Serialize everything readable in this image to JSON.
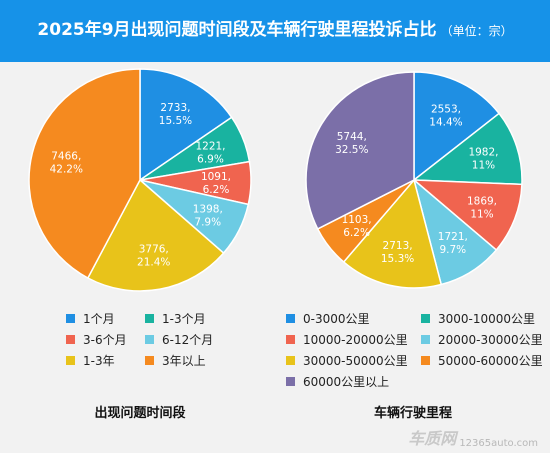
{
  "header": {
    "title": "2025年9月出现问题时间段及车辆行驶里程投诉占比",
    "unit": "（单位：宗）"
  },
  "watermark": {
    "logo": "车质网",
    "url": "12365auto.com"
  },
  "chart_data": [
    {
      "type": "pie",
      "title": "出现问题时间段",
      "start_angle_deg": 0,
      "direction": "clockwise",
      "slices": [
        {
          "name": "1个月",
          "value": 2733,
          "percent": "15.5%",
          "color": "#1f8fe3"
        },
        {
          "name": "1-3个月",
          "value": 1221,
          "percent": "6.9%",
          "color": "#19b3a0"
        },
        {
          "name": "3-6个月",
          "value": 1091,
          "percent": "6.2%",
          "color": "#f0644f"
        },
        {
          "name": "6-12个月",
          "value": 1398,
          "percent": "7.9%",
          "color": "#6ccbe3"
        },
        {
          "name": "1-3年",
          "value": 3776,
          "percent": "21.4%",
          "color": "#e8c31a"
        },
        {
          "name": "3年以上",
          "value": 7466,
          "percent": "42.2%",
          "color": "#f58a1f"
        }
      ]
    },
    {
      "type": "pie",
      "title": "车辆行驶里程",
      "start_angle_deg": 0,
      "direction": "clockwise",
      "slices": [
        {
          "name": "0-3000公里",
          "value": 2553,
          "percent": "14.4%",
          "color": "#1f8fe3"
        },
        {
          "name": "3000-10000公里",
          "value": 1982,
          "percent": "11%",
          "color": "#19b3a0"
        },
        {
          "name": "10000-20000公里",
          "value": 1869,
          "percent": "11%",
          "color": "#f0644f"
        },
        {
          "name": "20000-30000公里",
          "value": 1721,
          "percent": "9.7%",
          "color": "#6ccbe3"
        },
        {
          "name": "30000-50000公里",
          "value": 2713,
          "percent": "15.3%",
          "color": "#e8c31a"
        },
        {
          "name": "50000-60000公里",
          "value": 1103,
          "percent": "6.2%",
          "color": "#f58a1f"
        },
        {
          "name": "60000公里以上",
          "value": 5744,
          "percent": "32.5%",
          "color": "#7b6fa8"
        }
      ]
    }
  ]
}
